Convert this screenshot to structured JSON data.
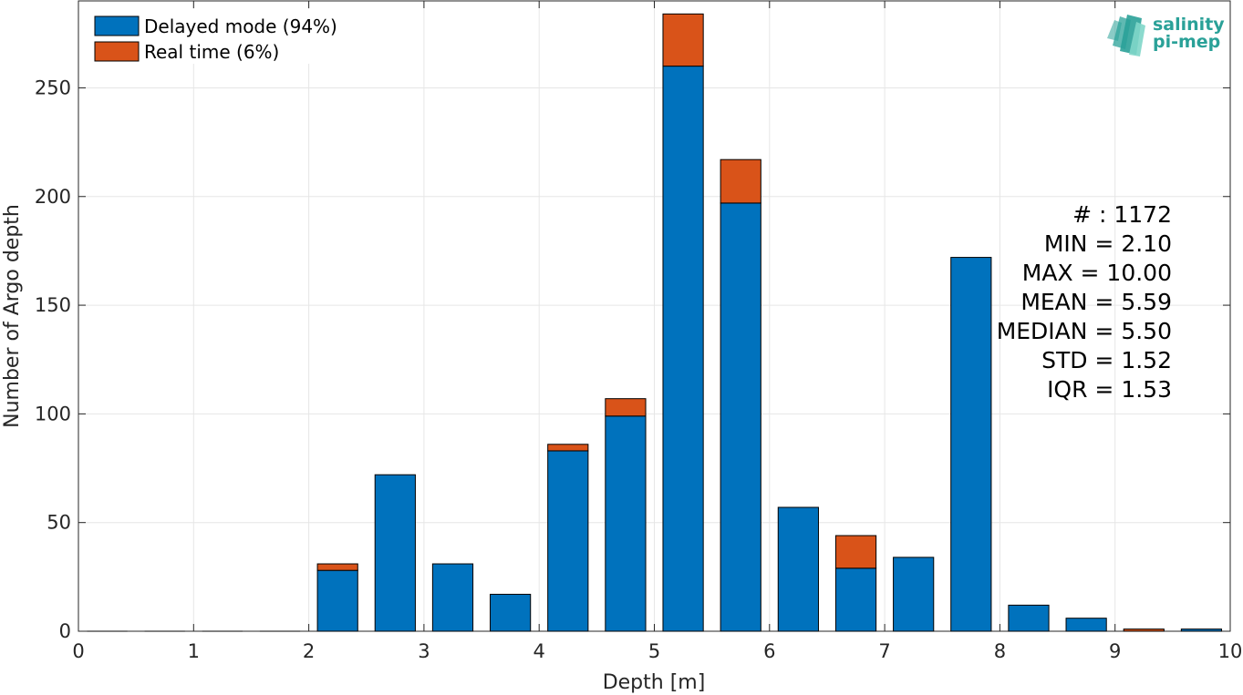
{
  "chart_data": {
    "type": "bar",
    "stacked": true,
    "xlabel": "Depth [m]",
    "ylabel": "Number of Argo depth",
    "xlim": [
      0,
      10
    ],
    "ylim": [
      0,
      290
    ],
    "x_ticks": [
      0,
      1,
      2,
      3,
      4,
      5,
      6,
      7,
      8,
      9,
      10
    ],
    "y_ticks": [
      0,
      50,
      100,
      150,
      200,
      250
    ],
    "grid": true,
    "legend_position": "top-left",
    "bin_width": 0.5,
    "x": [
      0.25,
      0.75,
      1.25,
      1.75,
      2.25,
      2.75,
      3.25,
      3.75,
      4.25,
      4.75,
      5.25,
      5.75,
      6.25,
      6.75,
      7.25,
      7.75,
      8.25,
      8.75,
      9.25,
      9.75
    ],
    "series": [
      {
        "name": "Delayed mode (94%)",
        "color": "#0072bd",
        "values": [
          0,
          0,
          0,
          0,
          28,
          72,
          31,
          17,
          83,
          99,
          260,
          197,
          57,
          29,
          34,
          172,
          12,
          6,
          0,
          1
        ]
      },
      {
        "name": "Real time (6%)",
        "color": "#d95319",
        "values": [
          0,
          0,
          0,
          0,
          3,
          0,
          0,
          0,
          3,
          8,
          24,
          20,
          0,
          15,
          0,
          0,
          0,
          0,
          1,
          0
        ]
      }
    ],
    "stats": [
      "# : 1172",
      "MIN = 2.10",
      "MAX =  10.00",
      "MEAN = 5.59",
      "MEDIAN = 5.50",
      "STD = 1.52",
      "IQR = 1.53"
    ]
  },
  "logo": {
    "line1": "salinity",
    "line2": "pi-mep"
  }
}
